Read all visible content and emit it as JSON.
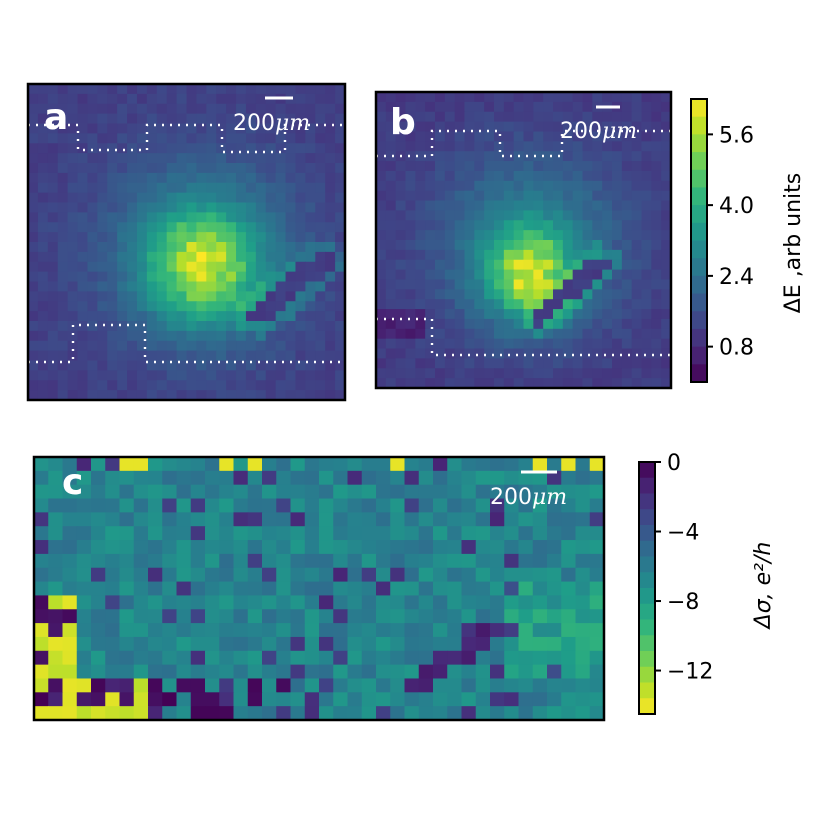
{
  "chart_data": [
    {
      "type": "heatmap",
      "panel_label": "a",
      "scale_bar_label": "200",
      "scale_bar_unit": "μm",
      "colormap": "viridis",
      "grid": false,
      "vmin": 0,
      "vmax": 6.4,
      "description_values": "spatial map of ΔE; bright blob near centre with peak ≈5.5–6, background ≈0.8–1.5, diagonal stripe lower right",
      "peak": 5.8,
      "background": 1.0
    },
    {
      "type": "heatmap",
      "panel_label": "b",
      "scale_bar_label": "200",
      "scale_bar_unit": "μm",
      "colormap": "viridis",
      "grid": false,
      "vmin": 0,
      "vmax": 6.4,
      "peak": 6.0,
      "background": 0.9
    },
    {
      "type": "heatmap",
      "panel_label": "c",
      "scale_bar_label": "200",
      "scale_bar_unit": "μm",
      "colormap": "viridis_r",
      "grid": false,
      "vmin": -14.5,
      "vmax": 0,
      "background": -6.5
    }
  ],
  "colorbars": [
    {
      "ticks": [
        "5.6",
        "4.0",
        "2.4",
        "0.8"
      ],
      "tick_values": [
        5.6,
        4.0,
        2.4,
        0.8
      ],
      "range": [
        0,
        6.4
      ],
      "label": "ΔE ,arb units"
    },
    {
      "ticks": [
        "0",
        "−4",
        "−8",
        "−12"
      ],
      "tick_values": [
        0,
        -4,
        -8,
        -12
      ],
      "range": [
        -14.5,
        0
      ],
      "label": "Δσ, e²/h"
    }
  ]
}
